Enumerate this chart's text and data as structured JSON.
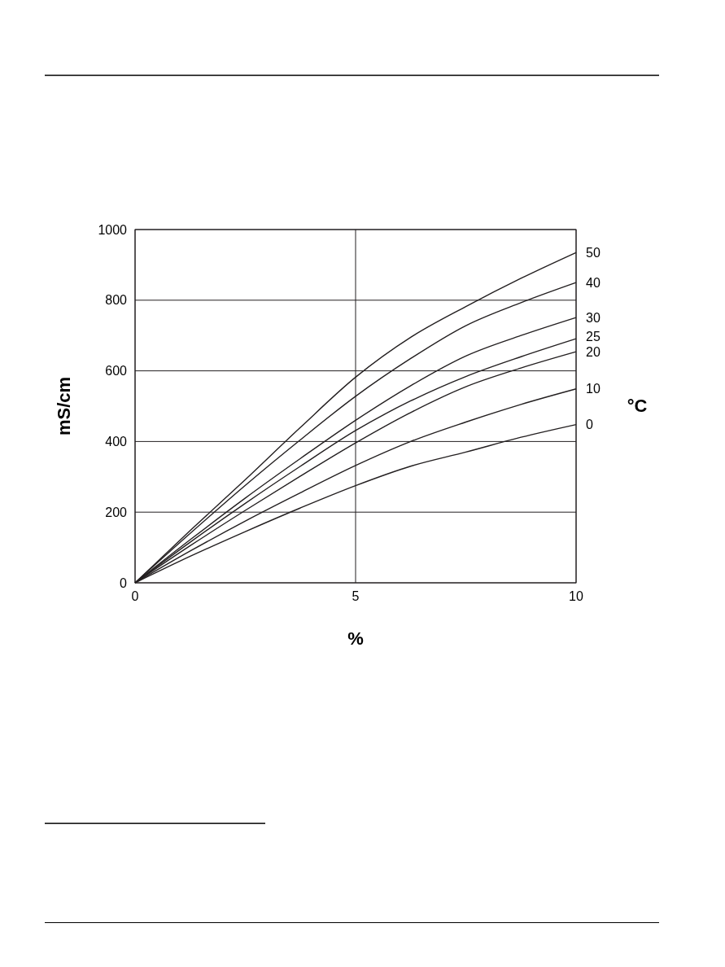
{
  "chart_data": {
    "type": "line",
    "xlabel": "%",
    "ylabel": "mS/cm",
    "y2label": "°C",
    "x": [
      0,
      1.25,
      2.5,
      3.75,
      5,
      6.25,
      7.5,
      8.75,
      10
    ],
    "xlim": [
      0,
      10
    ],
    "xticks": [
      0,
      5,
      10
    ],
    "ylim": [
      0,
      1000
    ],
    "yticks": [
      0,
      200,
      400,
      600,
      800,
      1000
    ],
    "grid": true,
    "marker": "none",
    "line_style": "solid",
    "series": [
      {
        "name": "50",
        "color": "#231f20",
        "values": [
          0,
          148,
          292,
          440,
          582,
          695,
          782,
          862,
          935
        ]
      },
      {
        "name": "40",
        "color": "#231f20",
        "values": [
          0,
          140,
          276,
          405,
          528,
          635,
          728,
          793,
          850
        ]
      },
      {
        "name": "30",
        "color": "#231f20",
        "values": [
          0,
          122,
          240,
          352,
          460,
          558,
          642,
          700,
          751
        ]
      },
      {
        "name": "25",
        "color": "#231f20",
        "values": [
          0,
          115,
          225,
          330,
          431,
          515,
          584,
          640,
          691
        ]
      },
      {
        "name": "20",
        "color": "#231f20",
        "values": [
          0,
          105,
          205,
          302,
          396,
          482,
          555,
          608,
          654
        ]
      },
      {
        "name": "10",
        "color": "#231f20",
        "values": [
          0,
          90,
          175,
          255,
          332,
          400,
          455,
          505,
          549
        ]
      },
      {
        "name": "0",
        "color": "#231f20",
        "values": [
          0,
          75,
          145,
          212,
          275,
          330,
          370,
          412,
          448
        ]
      }
    ]
  }
}
